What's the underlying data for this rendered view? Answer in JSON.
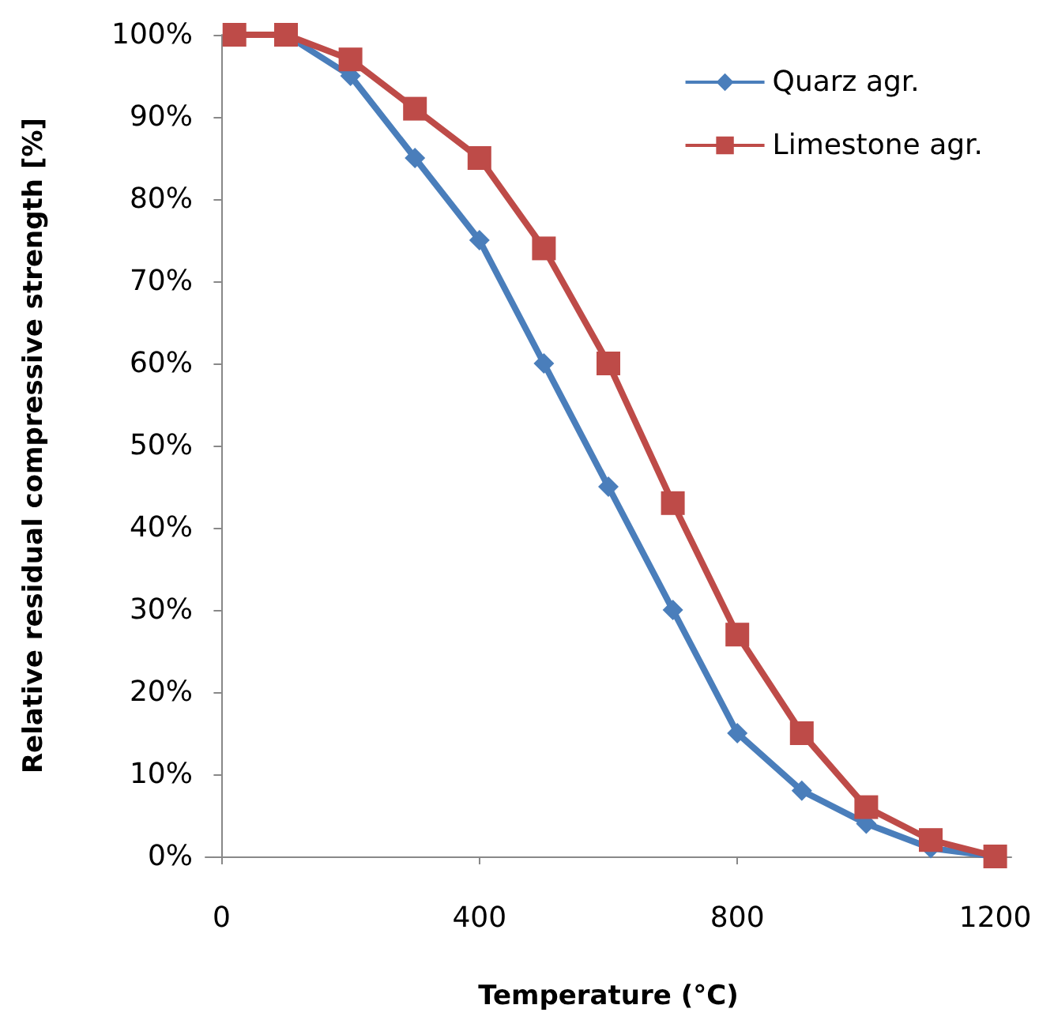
{
  "chart_data": {
    "type": "line",
    "xlabel": "Temperature (°C)",
    "ylabel": "Relative residual compressive strength [%]",
    "xlim": [
      -25,
      1225
    ],
    "xticks": [
      0,
      400,
      800,
      1200
    ],
    "ylim": [
      0,
      100
    ],
    "yticks": [
      {
        "value": 0,
        "label": "0%"
      },
      {
        "value": 10,
        "label": "10%"
      },
      {
        "value": 20,
        "label": "20%"
      },
      {
        "value": 30,
        "label": "30%"
      },
      {
        "value": 40,
        "label": "40%"
      },
      {
        "value": 50,
        "label": "50%"
      },
      {
        "value": 60,
        "label": "60%"
      },
      {
        "value": 70,
        "label": "70%"
      },
      {
        "value": 80,
        "label": "80%"
      },
      {
        "value": 90,
        "label": "90%"
      },
      {
        "value": 100,
        "label": "100%"
      }
    ],
    "x": [
      20,
      100,
      200,
      300,
      400,
      500,
      600,
      700,
      800,
      900,
      1000,
      1100,
      1200
    ],
    "grid": false,
    "legend": "top right",
    "line_style": "solid",
    "series": [
      {
        "name": "Quarz agr.",
        "color": "#4a7ebb",
        "marker": "diamond",
        "values": [
          100,
          100,
          95,
          85,
          75,
          60,
          45,
          30,
          15,
          8,
          4,
          1,
          0
        ]
      },
      {
        "name": "Limestone agr.",
        "color": "#be4b48",
        "marker": "square",
        "values": [
          100,
          100,
          97,
          91,
          85,
          74,
          60,
          43,
          27,
          15,
          6,
          2,
          0
        ]
      }
    ]
  }
}
